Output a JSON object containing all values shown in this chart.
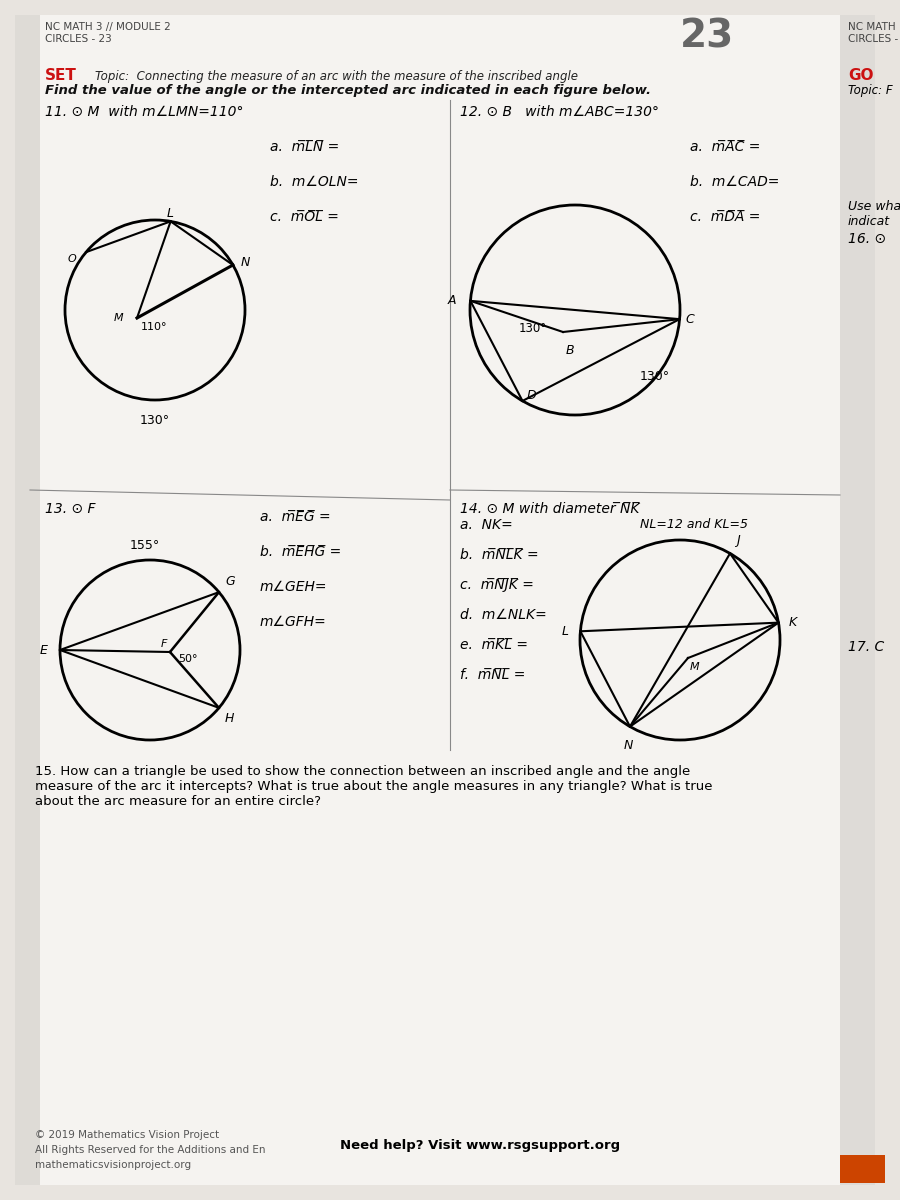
{
  "bg_color": "#e8e4df",
  "page_bg": "#f5f3f0",
  "title_left1": "NC MATH 3 // MODULE 2",
  "title_left2": "CIRCLES - 23",
  "page_num": "23",
  "title_right1": "NC MATH",
  "title_right2": "CIRCLES -",
  "set_label": "SET",
  "topic_line": "Topic:  Connecting the measure of an arc with the measure of the inscribed angle",
  "instruction": "Find the value of the angle or the intercepted arc indicated in each figure below.",
  "go_label": "GO",
  "go_topic": "Topic: F",
  "use_wha": "Use wha",
  "indicat": "indicat",
  "prob11_title": "11. ⊙ M  with m∠LMN=110°",
  "prob11_a": "a.  m̅L̅N̅ =",
  "prob11_b": "b.  m∠OLN=",
  "prob11_c": "c.  m̅O̅L̅ =",
  "p11_angle": "110°",
  "p11_arc": "130°",
  "prob12_title": "12. ⊙ B   with m∠ABC=130°",
  "prob12_a": "a.  m̅A̅C̅ =",
  "prob12_b": "b.  m∠CAD=",
  "prob12_c": "c.  m̅D̅A̅ =",
  "p12_ang1": "130°",
  "p12_ang2": "130°",
  "prob13_title": "13. ⊙ F",
  "prob13_a": "a.  m̅E̅G̅ =",
  "prob13_b": "b.  m̅E̅H̅G̅ =",
  "prob13_c": "m∠GEH=",
  "prob13_d": "m∠GFH=",
  "p13_ang1": "155°",
  "p13_ang2": "50°",
  "prob14_title": "14. ⊙ M with diameter ̅N̅K̅",
  "prob14_a": "a.  NK=",
  "prob14_nl_kl": "NL=12 and KL=5",
  "prob14_b": "b.  m̅N̅L̅K̅ =",
  "prob14_c": "c.  m̅N̅J̅K̅ =",
  "prob14_d": "d.  m∠NLK=",
  "prob14_e": "e.  m̅K̅L̅ =",
  "prob14_f": "f.  m̅N̅L̅ =",
  "prob15": "15. How can a triangle be used to show the connection between an inscribed angle and the angle\nmeasure of the arc it intercepts? What is true about the angle measures in any triangle? What is true\nabout the arc measure for an entire circle?",
  "prob16_label": "16. ⊙",
  "prob17_label": "17. C",
  "footer1": "© 2019 Mathematics Vision Project",
  "footer2": "All Rights Reserved for the Additions and En",
  "footer3": "mathematicsvisionproject.org",
  "footer_help": "Need help? Visit www.rsgsupport.org"
}
